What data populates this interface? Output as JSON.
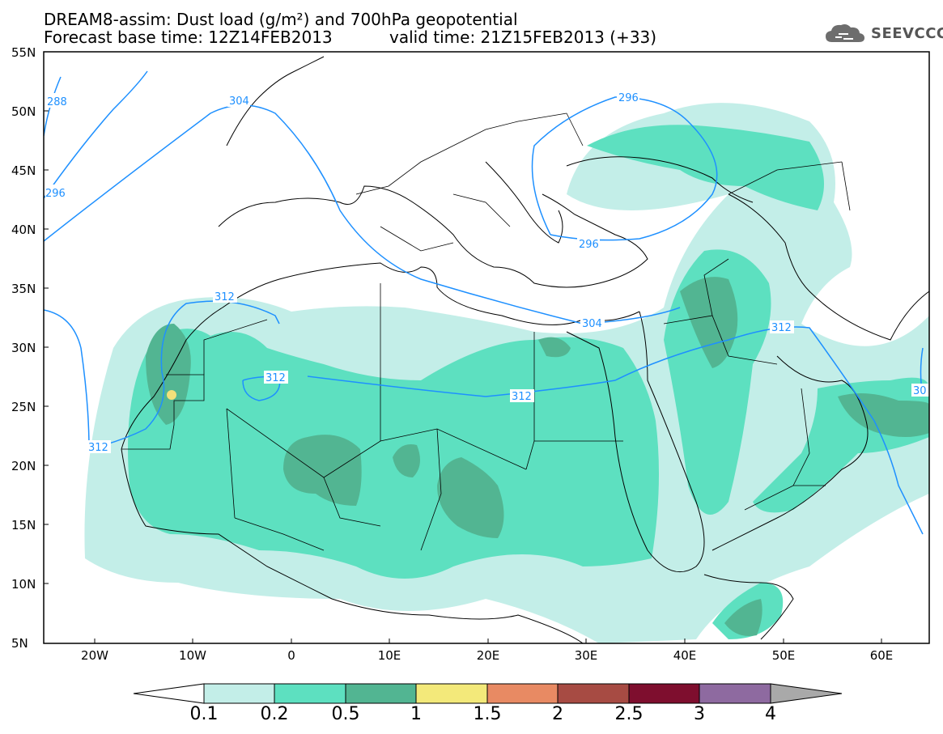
{
  "header": {
    "title_line1": "DREAM8-assim: Dust load (g/m²) and 700hPa geopotential",
    "title_line2_left": "Forecast base time: 12Z14FEB2013",
    "title_line2_right": "valid time: 21Z15FEB2013 (+33)"
  },
  "logo": {
    "text": "SEEVCCC",
    "icon": "cloud-logo-icon"
  },
  "map": {
    "region": "North Africa, Middle East and Europe",
    "lat_labels": [
      "55N",
      "50N",
      "45N",
      "40N",
      "35N",
      "30N",
      "25N",
      "20N",
      "15N",
      "10N",
      "5N"
    ],
    "lon_labels": [
      "20W",
      "10W",
      "0",
      "10E",
      "20E",
      "30E",
      "40E",
      "50E",
      "60E"
    ],
    "contour_labels": [
      "288",
      "296",
      "304",
      "296",
      "296",
      "312",
      "312",
      "304",
      "312",
      "312",
      "312",
      "30"
    ],
    "contour_color": "#1e90ff",
    "point_marker_color": "#f3e07a"
  },
  "colorbar": {
    "labels": [
      "0.1",
      "0.2",
      "0.5",
      "1",
      "1.5",
      "2",
      "2.5",
      "3",
      "4"
    ],
    "colors": [
      "#ffffff",
      "#c3eee8",
      "#5de0c0",
      "#52b592",
      "#f3e97a",
      "#e88a63",
      "#a74b43",
      "#7e0e2e",
      "#8e6aa0",
      "#a9a9a9"
    ]
  }
}
